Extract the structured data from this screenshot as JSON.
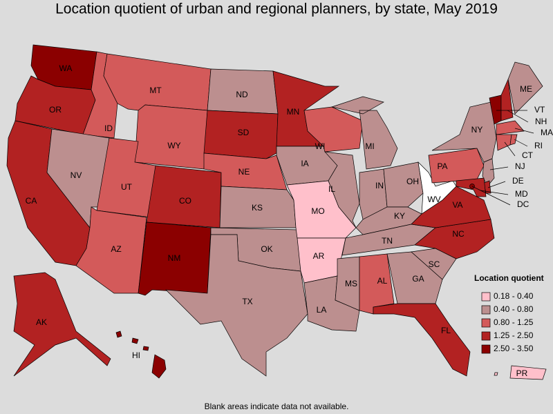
{
  "title": "Location quotient of urban and regional planners, by state, May 2019",
  "legend": {
    "title": "Location quotient",
    "items": [
      {
        "label": "0.18 - 0.40",
        "color": "#ffc0cb"
      },
      {
        "label": "0.40 - 0.80",
        "color": "#bc8f8f"
      },
      {
        "label": "0.80 - 1.25",
        "color": "#d35a5a"
      },
      {
        "label": "1.25 - 2.50",
        "color": "#b22222"
      },
      {
        "label": "2.50 - 3.50",
        "color": "#8b0000"
      }
    ]
  },
  "states": [
    {
      "abbr": "WA",
      "color": "#8b0000"
    },
    {
      "abbr": "OR",
      "color": "#b22222"
    },
    {
      "abbr": "CA",
      "color": "#b22222"
    },
    {
      "abbr": "ID",
      "color": "#d35a5a"
    },
    {
      "abbr": "NV",
      "color": "#bc8f8f"
    },
    {
      "abbr": "MT",
      "color": "#d35a5a"
    },
    {
      "abbr": "WY",
      "color": "#d35a5a"
    },
    {
      "abbr": "UT",
      "color": "#d35a5a"
    },
    {
      "abbr": "CO",
      "color": "#b22222"
    },
    {
      "abbr": "AZ",
      "color": "#d35a5a"
    },
    {
      "abbr": "NM",
      "color": "#8b0000"
    },
    {
      "abbr": "ND",
      "color": "#bc8f8f"
    },
    {
      "abbr": "SD",
      "color": "#b22222"
    },
    {
      "abbr": "NE",
      "color": "#d35a5a"
    },
    {
      "abbr": "KS",
      "color": "#bc8f8f"
    },
    {
      "abbr": "OK",
      "color": "#bc8f8f"
    },
    {
      "abbr": "TX",
      "color": "#bc8f8f"
    },
    {
      "abbr": "MN",
      "color": "#b22222"
    },
    {
      "abbr": "IA",
      "color": "#bc8f8f"
    },
    {
      "abbr": "MO",
      "color": "#ffc0cb"
    },
    {
      "abbr": "AR",
      "color": "#ffc0cb"
    },
    {
      "abbr": "LA",
      "color": "#bc8f8f"
    },
    {
      "abbr": "WI",
      "color": "#d35a5a"
    },
    {
      "abbr": "IL",
      "color": "#bc8f8f"
    },
    {
      "abbr": "MI",
      "color": "#bc8f8f"
    },
    {
      "abbr": "IN",
      "color": "#bc8f8f"
    },
    {
      "abbr": "OH",
      "color": "#bc8f8f"
    },
    {
      "abbr": "KY",
      "color": "#bc8f8f"
    },
    {
      "abbr": "TN",
      "color": "#bc8f8f"
    },
    {
      "abbr": "MS",
      "color": "#bc8f8f"
    },
    {
      "abbr": "AL",
      "color": "#d35a5a"
    },
    {
      "abbr": "GA",
      "color": "#bc8f8f"
    },
    {
      "abbr": "FL",
      "color": "#b22222"
    },
    {
      "abbr": "SC",
      "color": "#bc8f8f"
    },
    {
      "abbr": "NC",
      "color": "#b22222"
    },
    {
      "abbr": "VA",
      "color": "#b22222"
    },
    {
      "abbr": "WV",
      "color": "#ffffff"
    },
    {
      "abbr": "PA",
      "color": "#d35a5a"
    },
    {
      "abbr": "NY",
      "color": "#bc8f8f"
    },
    {
      "abbr": "VT",
      "color": "#8b0000"
    },
    {
      "abbr": "NH",
      "color": "#b22222"
    },
    {
      "abbr": "ME",
      "color": "#bc8f8f"
    },
    {
      "abbr": "MA",
      "color": "#d35a5a"
    },
    {
      "abbr": "CT",
      "color": "#d35a5a"
    },
    {
      "abbr": "RI",
      "color": "#d35a5a"
    },
    {
      "abbr": "NJ",
      "color": "#bc8f8f"
    },
    {
      "abbr": "DE",
      "color": "#b22222"
    },
    {
      "abbr": "MD",
      "color": "#b22222"
    },
    {
      "abbr": "DC",
      "color": "#8b0000"
    },
    {
      "abbr": "AK",
      "color": "#b22222"
    },
    {
      "abbr": "HI",
      "color": "#8b0000"
    },
    {
      "abbr": "PR",
      "color": "#ffc0cb"
    }
  ],
  "note": "Blank areas indicate data not available."
}
